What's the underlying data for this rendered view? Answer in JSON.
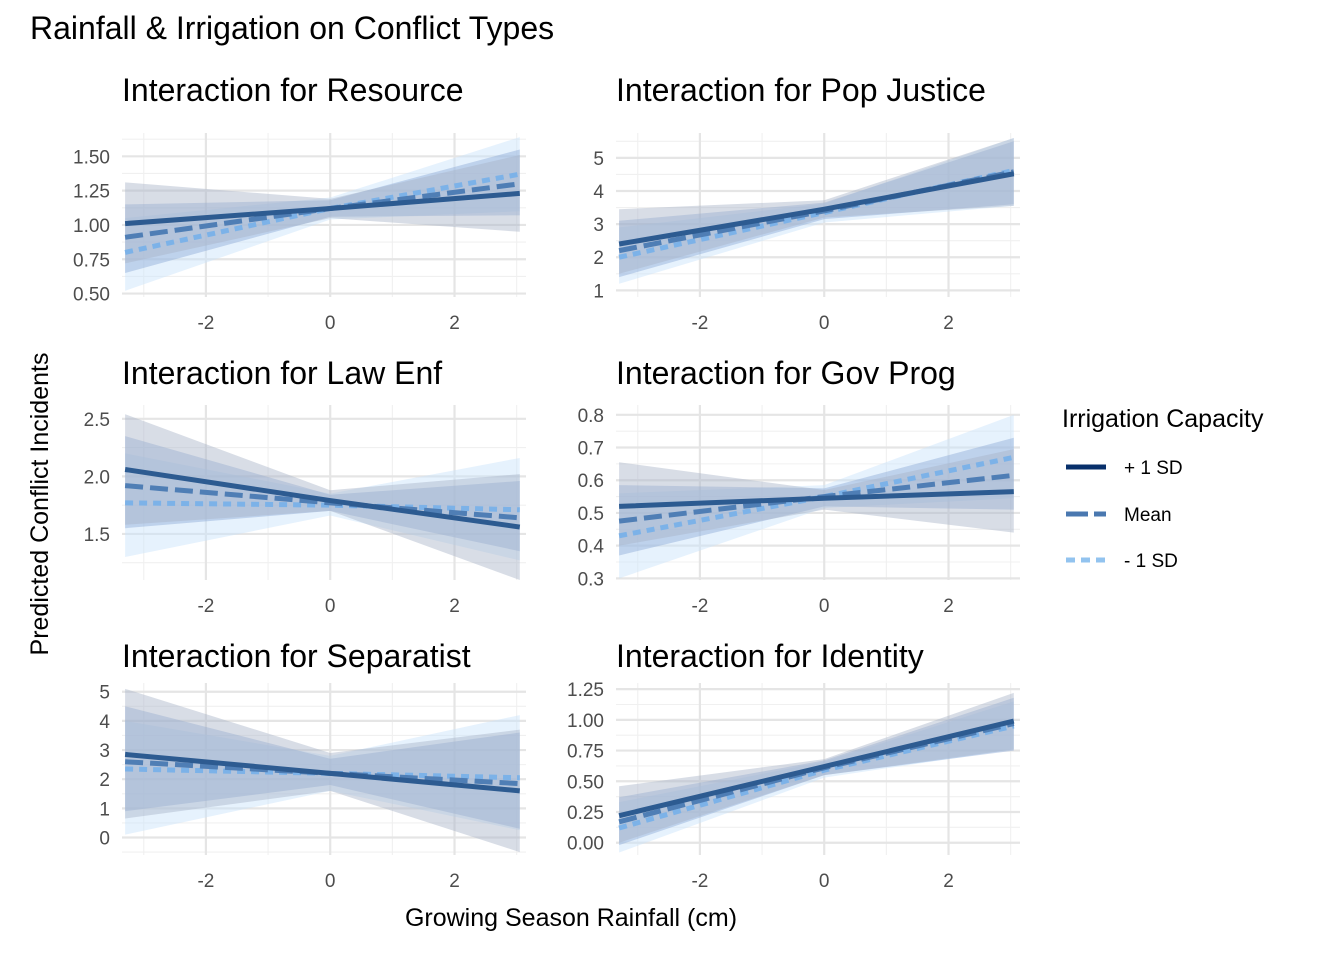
{
  "chart_data": {
    "type": "line",
    "title": "Rainfall & Irrigation on Conflict Types",
    "xlabel": "Growing Season Rainfall (cm)",
    "ylabel": "Predicted Conflict Incidents",
    "legend": {
      "title": "Irrigation Capacity",
      "placement": "right",
      "entries": [
        {
          "name": "+ 1 SD",
          "color": "#08306b",
          "dash": "solid"
        },
        {
          "name": "Mean",
          "color": "#4a78b0",
          "dash": "long-dash"
        },
        {
          "name": "- 1 SD",
          "color": "#92c3ef",
          "dash": "short-dash"
        }
      ]
    },
    "series_style": {
      "plus": {
        "line_color": "#2d5b91",
        "band_color": "#a9b3c7",
        "dash": "solid"
      },
      "mean": {
        "line_color": "#4f7eb5",
        "band_color": "#8eaad6",
        "dash": "long-dash"
      },
      "minus": {
        "line_color": "#7cb2e8",
        "band_color": "#c7e3fb",
        "dash": "short-dash"
      }
    },
    "grid": true,
    "panels": [
      {
        "title": "Interaction for Resource",
        "xlim": [
          -3.35,
          3.15
        ],
        "x_ticks": [
          "-2",
          "0",
          "2"
        ],
        "x_tick_values": [
          -2,
          0,
          2
        ],
        "x_minor": [
          -3,
          -1,
          1,
          3
        ],
        "ylim": [
          0.475,
          1.67
        ],
        "y_ticks": [
          "0.50",
          "0.75",
          "1.00",
          "1.25",
          "1.50"
        ],
        "y_tick_values": [
          0.5,
          0.75,
          1.0,
          1.25,
          1.5
        ],
        "x": [
          -3.3,
          0,
          3.05
        ],
        "series": [
          {
            "name": "+ 1 SD",
            "key": "plus",
            "values": [
              1.01,
              1.12,
              1.23
            ],
            "lower": [
              0.72,
              1.05,
              0.95
            ],
            "upper": [
              1.31,
              1.19,
              1.51
            ]
          },
          {
            "name": "Mean",
            "key": "mean",
            "values": [
              0.91,
              1.12,
              1.3
            ],
            "lower": [
              0.65,
              1.06,
              1.07
            ],
            "upper": [
              1.15,
              1.18,
              1.55
            ]
          },
          {
            "name": "- 1 SD",
            "key": "minus",
            "values": [
              0.8,
              1.12,
              1.37
            ],
            "lower": [
              0.52,
              1.04,
              1.1
            ],
            "upper": [
              1.05,
              1.2,
              1.64
            ]
          }
        ]
      },
      {
        "title": "Interaction for Pop Justice",
        "xlim": [
          -3.35,
          3.15
        ],
        "x_ticks": [
          "-2",
          "0",
          "2"
        ],
        "x_tick_values": [
          -2,
          0,
          2
        ],
        "x_minor": [
          -3,
          -1,
          1,
          3
        ],
        "ylim": [
          0.8,
          5.75
        ],
        "y_ticks": [
          "1",
          "2",
          "3",
          "4",
          "5"
        ],
        "y_tick_values": [
          1,
          2,
          3,
          4,
          5
        ],
        "x": [
          -3.3,
          0,
          3.05
        ],
        "series": [
          {
            "name": "+ 1 SD",
            "key": "plus",
            "values": [
              2.4,
              3.45,
              4.52
            ],
            "lower": [
              1.5,
              3.2,
              3.55
            ],
            "upper": [
              3.45,
              3.72,
              5.6
            ]
          },
          {
            "name": "Mean",
            "key": "mean",
            "values": [
              2.2,
              3.4,
              4.58
            ],
            "lower": [
              1.4,
              3.15,
              3.6
            ],
            "upper": [
              3.1,
              3.65,
              5.5
            ]
          },
          {
            "name": "- 1 SD",
            "key": "minus",
            "values": [
              2.0,
              3.35,
              4.62
            ],
            "lower": [
              1.2,
              3.05,
              3.55
            ],
            "upper": [
              2.9,
              3.62,
              5.6
            ]
          }
        ]
      },
      {
        "title": "Interaction for Law Enf",
        "xlim": [
          -3.35,
          3.15
        ],
        "x_ticks": [
          "-2",
          "0",
          "2"
        ],
        "x_tick_values": [
          -2,
          0,
          2
        ],
        "x_minor": [
          -3,
          -1,
          1,
          3
        ],
        "ylim": [
          1.1,
          2.62
        ],
        "y_ticks": [
          "1.5",
          "2.0",
          "2.5"
        ],
        "y_tick_values": [
          1.5,
          2.0,
          2.5
        ],
        "x": [
          -3.3,
          0,
          3.05
        ],
        "series": [
          {
            "name": "+ 1 SD",
            "key": "plus",
            "values": [
              2.06,
              1.79,
              1.56
            ],
            "lower": [
              1.58,
              1.7,
              1.1
            ],
            "upper": [
              2.54,
              1.88,
              2.02
            ]
          },
          {
            "name": "Mean",
            "key": "mean",
            "values": [
              1.92,
              1.77,
              1.64
            ],
            "lower": [
              1.55,
              1.7,
              1.35
            ],
            "upper": [
              2.35,
              1.84,
              1.96
            ]
          },
          {
            "name": "- 1 SD",
            "key": "minus",
            "values": [
              1.77,
              1.75,
              1.71
            ],
            "lower": [
              1.3,
              1.66,
              1.27
            ],
            "upper": [
              2.2,
              1.85,
              2.16
            ]
          }
        ]
      },
      {
        "title": "Interaction for Gov Prog",
        "xlim": [
          -3.35,
          3.15
        ],
        "x_ticks": [
          "-2",
          "0",
          "2"
        ],
        "x_tick_values": [
          -2,
          0,
          2
        ],
        "x_minor": [
          -3,
          -1,
          1,
          3
        ],
        "ylim": [
          0.295,
          0.83
        ],
        "y_ticks": [
          "0.3",
          "0.4",
          "0.5",
          "0.6",
          "0.7",
          "0.8"
        ],
        "y_tick_values": [
          0.3,
          0.4,
          0.5,
          0.6,
          0.7,
          0.8
        ],
        "x": [
          -3.3,
          0,
          3.05
        ],
        "series": [
          {
            "name": "+ 1 SD",
            "key": "plus",
            "values": [
              0.52,
              0.545,
              0.565
            ],
            "lower": [
              0.4,
              0.51,
              0.44
            ],
            "upper": [
              0.655,
              0.57,
              0.695
            ]
          },
          {
            "name": "Mean",
            "key": "mean",
            "values": [
              0.475,
              0.55,
              0.615
            ],
            "lower": [
              0.37,
              0.52,
              0.51
            ],
            "upper": [
              0.585,
              0.575,
              0.73
            ]
          },
          {
            "name": "- 1 SD",
            "key": "minus",
            "values": [
              0.43,
              0.55,
              0.67
            ],
            "lower": [
              0.3,
              0.515,
              0.545
            ],
            "upper": [
              0.56,
              0.585,
              0.8
            ]
          }
        ]
      },
      {
        "title": "Interaction for Separatist",
        "xlim": [
          -3.35,
          3.15
        ],
        "x_ticks": [
          "-2",
          "0",
          "2"
        ],
        "x_tick_values": [
          -2,
          0,
          2
        ],
        "x_minor": [
          -3,
          -1,
          1,
          3
        ],
        "ylim": [
          -0.6,
          5.3
        ],
        "y_ticks": [
          "0",
          "1",
          "2",
          "3",
          "4",
          "5"
        ],
        "y_tick_values": [
          0,
          1,
          2,
          3,
          4,
          5
        ],
        "x": [
          -3.3,
          0,
          3.05
        ],
        "series": [
          {
            "name": "+ 1 SD",
            "key": "plus",
            "values": [
              2.85,
              2.2,
              1.6
            ],
            "lower": [
              0.65,
              1.6,
              -0.5
            ],
            "upper": [
              5.1,
              2.9,
              3.7
            ]
          },
          {
            "name": "Mean",
            "key": "mean",
            "values": [
              2.6,
              2.2,
              1.85
            ],
            "lower": [
              0.9,
              1.8,
              0.3
            ],
            "upper": [
              4.5,
              2.7,
              3.6
            ]
          },
          {
            "name": "- 1 SD",
            "key": "minus",
            "values": [
              2.35,
              2.2,
              2.05
            ],
            "lower": [
              0.1,
              1.6,
              0.25
            ],
            "upper": [
              4.0,
              2.8,
              4.2
            ]
          }
        ]
      },
      {
        "title": "Interaction for Identity",
        "xlim": [
          -3.35,
          3.15
        ],
        "x_ticks": [
          "-2",
          "0",
          "2"
        ],
        "x_tick_values": [
          -2,
          0,
          2
        ],
        "x_minor": [
          -3,
          -1,
          1,
          3
        ],
        "ylim": [
          -0.1,
          1.3
        ],
        "y_ticks": [
          "0.00",
          "0.25",
          "0.50",
          "0.75",
          "1.00",
          "1.25"
        ],
        "y_tick_values": [
          0.0,
          0.25,
          0.5,
          0.75,
          1.0,
          1.25
        ],
        "x": [
          -3.3,
          0,
          3.05
        ],
        "series": [
          {
            "name": "+ 1 SD",
            "key": "plus",
            "values": [
              0.22,
              0.62,
              0.99
            ],
            "lower": [
              0.0,
              0.55,
              0.76
            ],
            "upper": [
              0.46,
              0.68,
              1.22
            ]
          },
          {
            "name": "Mean",
            "key": "mean",
            "values": [
              0.17,
              0.61,
              0.97
            ],
            "lower": [
              -0.02,
              0.55,
              0.75
            ],
            "upper": [
              0.37,
              0.67,
              1.18
            ]
          },
          {
            "name": "- 1 SD",
            "key": "minus",
            "values": [
              0.12,
              0.59,
              0.95
            ],
            "lower": [
              -0.08,
              0.53,
              0.76
            ],
            "upper": [
              0.33,
              0.66,
              1.15
            ]
          }
        ]
      }
    ]
  }
}
